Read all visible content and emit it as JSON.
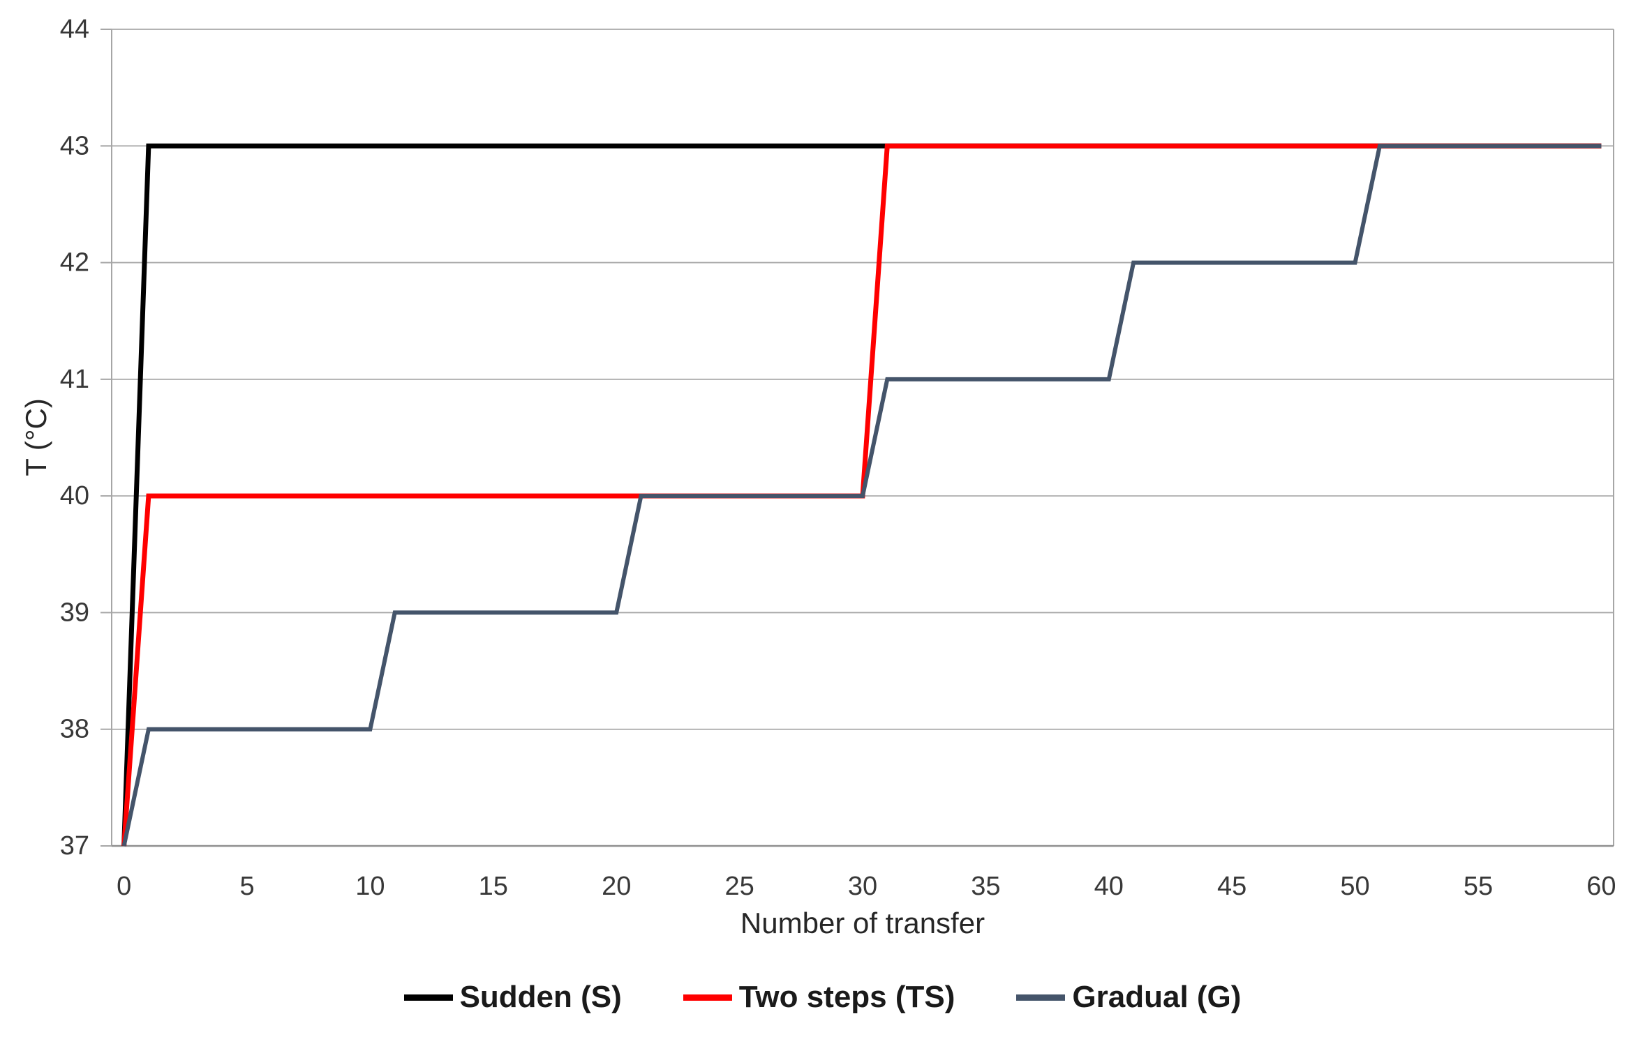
{
  "chart_data": {
    "type": "line",
    "title": "",
    "xlabel": "Number of transfer",
    "ylabel": "T (°C)",
    "xlim": [
      0,
      60
    ],
    "ylim": [
      37,
      44
    ],
    "x_ticks": [
      0,
      5,
      10,
      15,
      20,
      25,
      30,
      35,
      40,
      45,
      50,
      55,
      60
    ],
    "y_ticks": [
      37,
      38,
      39,
      40,
      41,
      42,
      43,
      44
    ],
    "grid": "horizontal",
    "legend_position": "bottom-center",
    "series": [
      {
        "name": "Sudden (S)",
        "color": "#000000",
        "width": 7,
        "points": [
          [
            0,
            37
          ],
          [
            1,
            43
          ],
          [
            60,
            43
          ]
        ]
      },
      {
        "name": "Two steps (TS)",
        "color": "#FF0000",
        "width": 7,
        "points": [
          [
            0,
            37
          ],
          [
            1,
            40
          ],
          [
            30,
            40
          ],
          [
            31,
            43
          ],
          [
            60,
            43
          ]
        ]
      },
      {
        "name": "Gradual (G)",
        "color": "#44546A",
        "width": 6,
        "points": [
          [
            0,
            37
          ],
          [
            1,
            38
          ],
          [
            10,
            38
          ],
          [
            11,
            39
          ],
          [
            20,
            39
          ],
          [
            21,
            40
          ],
          [
            30,
            40
          ],
          [
            31,
            41
          ],
          [
            40,
            41
          ],
          [
            41,
            42
          ],
          [
            50,
            42
          ],
          [
            51,
            43
          ],
          [
            60,
            43
          ]
        ]
      }
    ]
  },
  "styles": {
    "background": "#FFFFFF",
    "grid_color": "#A8A8A8",
    "axis_color": "#A6A6A6",
    "baseline_color": "#8F8F8F",
    "tick_label_color": "#383838",
    "axis_title_color": "#262626",
    "legend_text_color": "#1A1A1A"
  }
}
